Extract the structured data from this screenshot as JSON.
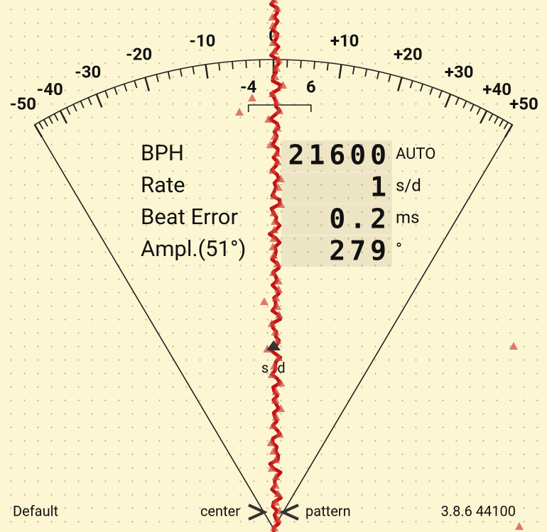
{
  "scale": {
    "labels": [
      {
        "value": -50,
        "label": "-50"
      },
      {
        "value": -40,
        "label": "-40"
      },
      {
        "value": -30,
        "label": "-30"
      },
      {
        "value": -20,
        "label": "-20"
      },
      {
        "value": -10,
        "label": "-10"
      },
      {
        "value": 0,
        "label": "0"
      },
      {
        "value": 10,
        "label": "+10"
      },
      {
        "value": 20,
        "label": "+20"
      },
      {
        "value": 30,
        "label": "+30"
      },
      {
        "value": 40,
        "label": "+40"
      },
      {
        "value": 50,
        "label": "+50"
      }
    ],
    "bracket": [
      {
        "value": -4,
        "label": "-4"
      },
      {
        "value": 6,
        "label": "6"
      }
    ]
  },
  "readouts": [
    {
      "label": "BPH",
      "value": "21600",
      "unit": "AUTO"
    },
    {
      "label": "Rate",
      "value": "1",
      "unit": "s/d"
    },
    {
      "label": "Beat Error",
      "value": "0.2",
      "unit": "ms"
    },
    {
      "label": "Ampl.(51°)",
      "value": "279",
      "unit": "°"
    }
  ],
  "marker": [
    "s",
    "d"
  ],
  "footer": {
    "preset": "Default",
    "left": "center",
    "right": "pattern",
    "version": "3.8.6 44100"
  }
}
